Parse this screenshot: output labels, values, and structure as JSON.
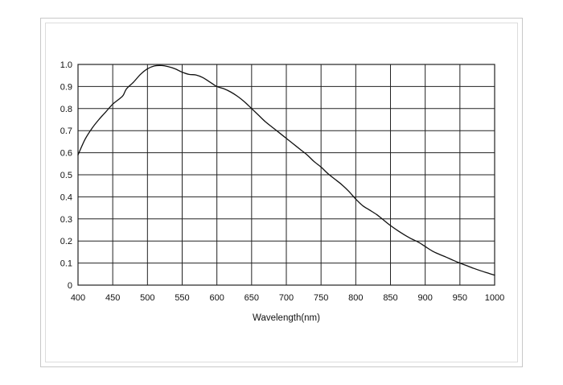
{
  "chart_data": {
    "type": "line",
    "title": "",
    "xlabel": "Wavelength(nm)",
    "ylabel": "",
    "xlim": [
      400,
      1000
    ],
    "ylim": [
      0,
      1.0
    ],
    "x_ticks": [
      "400",
      "450",
      "500",
      "550",
      "600",
      "650",
      "700",
      "750",
      "800",
      "850",
      "900",
      "950",
      "1000"
    ],
    "y_ticks": [
      "0",
      "0.1",
      "0.2",
      "0.3",
      "0.4",
      "0.5",
      "0.6",
      "0.7",
      "0.8",
      "0.9",
      "1.0"
    ],
    "grid": true,
    "legend": "none",
    "line_color": "#111111",
    "grid_color": "#222222",
    "series": [
      {
        "x": [
          400,
          410,
          420,
          430,
          440,
          450,
          460,
          465,
          470,
          480,
          490,
          500,
          510,
          520,
          530,
          540,
          550,
          560,
          570,
          580,
          590,
          600,
          610,
          620,
          630,
          640,
          650,
          660,
          670,
          680,
          690,
          700,
          710,
          720,
          730,
          740,
          750,
          760,
          770,
          780,
          790,
          800,
          810,
          820,
          830,
          840,
          850,
          860,
          870,
          880,
          890,
          900,
          910,
          920,
          930,
          940,
          950,
          960,
          970,
          980,
          990,
          1000
        ],
        "y": [
          0.59,
          0.66,
          0.71,
          0.75,
          0.785,
          0.82,
          0.845,
          0.86,
          0.89,
          0.92,
          0.955,
          0.98,
          0.993,
          0.995,
          0.99,
          0.98,
          0.965,
          0.955,
          0.952,
          0.94,
          0.92,
          0.9,
          0.89,
          0.875,
          0.855,
          0.83,
          0.8,
          0.77,
          0.74,
          0.715,
          0.69,
          0.665,
          0.64,
          0.615,
          0.59,
          0.56,
          0.535,
          0.505,
          0.48,
          0.455,
          0.425,
          0.39,
          0.36,
          0.34,
          0.32,
          0.295,
          0.27,
          0.248,
          0.228,
          0.21,
          0.195,
          0.175,
          0.155,
          0.14,
          0.127,
          0.113,
          0.1,
          0.088,
          0.076,
          0.065,
          0.055,
          0.045
        ]
      }
    ]
  }
}
